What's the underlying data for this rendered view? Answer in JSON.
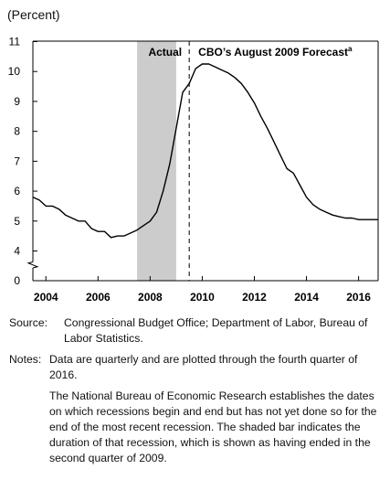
{
  "chart_data": {
    "type": "line",
    "ylabel": "(Percent)",
    "ylim": [
      0,
      11
    ],
    "xlim": [
      2003.5,
      2016.75
    ],
    "yticks": [
      "0",
      "4",
      "5",
      "6",
      "7",
      "8",
      "9",
      "10",
      "11"
    ],
    "xticks": [
      "2004",
      "2006",
      "2008",
      "2010",
      "2012",
      "2014",
      "2016"
    ],
    "axis_break": true,
    "recession_band": {
      "start": 2007.5,
      "end": 2009.0
    },
    "forecast_divider": 2009.5,
    "annotations": {
      "actual": "Actual",
      "forecast": "CBO’s August 2009 Forecast",
      "footnote_mark": "a"
    },
    "series": [
      {
        "values": [
          [
            2003.5,
            5.8
          ],
          [
            2003.75,
            5.7
          ],
          [
            2004.0,
            5.5
          ],
          [
            2004.25,
            5.5
          ],
          [
            2004.5,
            5.4
          ],
          [
            2004.75,
            5.2
          ],
          [
            2005.0,
            5.1
          ],
          [
            2005.25,
            5.0
          ],
          [
            2005.5,
            5.0
          ],
          [
            2005.75,
            4.75
          ],
          [
            2006.0,
            4.65
          ],
          [
            2006.25,
            4.65
          ],
          [
            2006.5,
            4.45
          ],
          [
            2006.75,
            4.5
          ],
          [
            2007.0,
            4.5
          ],
          [
            2007.25,
            4.6
          ],
          [
            2007.5,
            4.7
          ],
          [
            2007.75,
            4.85
          ],
          [
            2008.0,
            5.0
          ],
          [
            2008.25,
            5.3
          ],
          [
            2008.5,
            6.0
          ],
          [
            2008.75,
            6.9
          ],
          [
            2009.0,
            8.1
          ],
          [
            2009.25,
            9.3
          ],
          [
            2009.5,
            9.6
          ],
          [
            2009.75,
            10.1
          ],
          [
            2010.0,
            10.25
          ],
          [
            2010.25,
            10.25
          ],
          [
            2010.5,
            10.15
          ],
          [
            2010.75,
            10.05
          ],
          [
            2011.0,
            9.95
          ],
          [
            2011.25,
            9.8
          ],
          [
            2011.5,
            9.6
          ],
          [
            2011.75,
            9.3
          ],
          [
            2012.0,
            8.95
          ],
          [
            2012.25,
            8.5
          ],
          [
            2012.5,
            8.1
          ],
          [
            2012.75,
            7.65
          ],
          [
            2013.0,
            7.2
          ],
          [
            2013.25,
            6.75
          ],
          [
            2013.5,
            6.6
          ],
          [
            2013.75,
            6.2
          ],
          [
            2014.0,
            5.8
          ],
          [
            2014.25,
            5.55
          ],
          [
            2014.5,
            5.4
          ],
          [
            2014.75,
            5.3
          ],
          [
            2015.0,
            5.2
          ],
          [
            2015.25,
            5.15
          ],
          [
            2015.5,
            5.1
          ],
          [
            2015.75,
            5.1
          ],
          [
            2016.0,
            5.05
          ],
          [
            2016.25,
            5.05
          ],
          [
            2016.5,
            5.05
          ],
          [
            2016.75,
            5.05
          ]
        ]
      }
    ]
  },
  "source": {
    "label": "Source:",
    "text": "Congressional Budget Office; Department of Labor, Bureau of Labor Statistics."
  },
  "notes": {
    "label": "Notes:",
    "first": "Data are quarterly and are plotted through the fourth quarter of 2016.",
    "second": "The National Bureau of Economic Research establishes the dates on which recessions begin and end but has not yet done so for the end of the most recent recession. The shaded bar indicates the duration of that recession, which is shown as having ended in the second quarter of 2009."
  }
}
